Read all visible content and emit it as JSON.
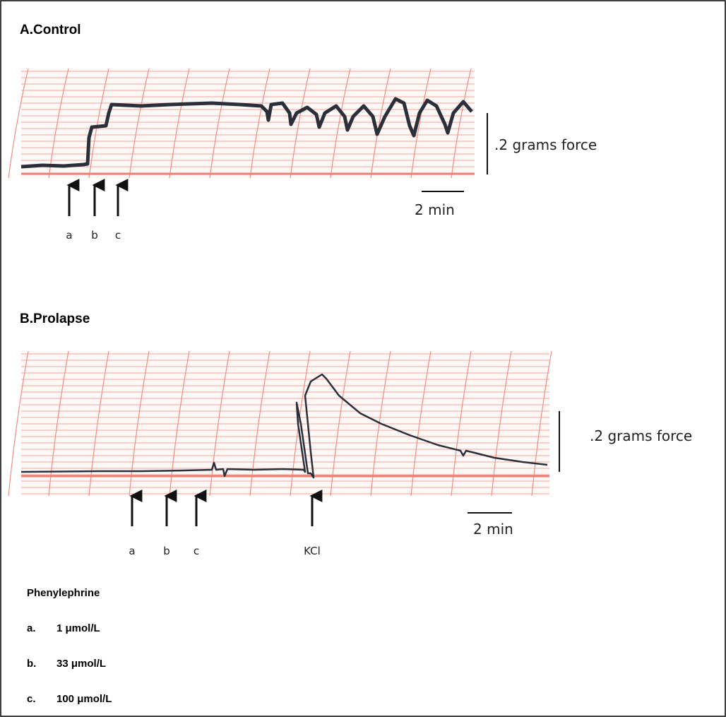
{
  "panels": [
    {
      "title": "A.Control",
      "force_scale": ".2 grams force",
      "time_scale": "2 min",
      "arrows": [
        "a",
        "b",
        "c"
      ]
    },
    {
      "title": "B.Prolapse",
      "force_scale": ".2 grams force",
      "time_scale": "2 min",
      "arrows": [
        "a",
        "b",
        "c",
        "KCl"
      ]
    }
  ],
  "legend": {
    "title": "Phenylephrine",
    "items": [
      {
        "key": "a.",
        "text": "1 μmol/L"
      },
      {
        "key": "b.",
        "text": "33 μmol/L"
      },
      {
        "key": "c.",
        "text": "100 μmol/L"
      }
    ]
  }
}
